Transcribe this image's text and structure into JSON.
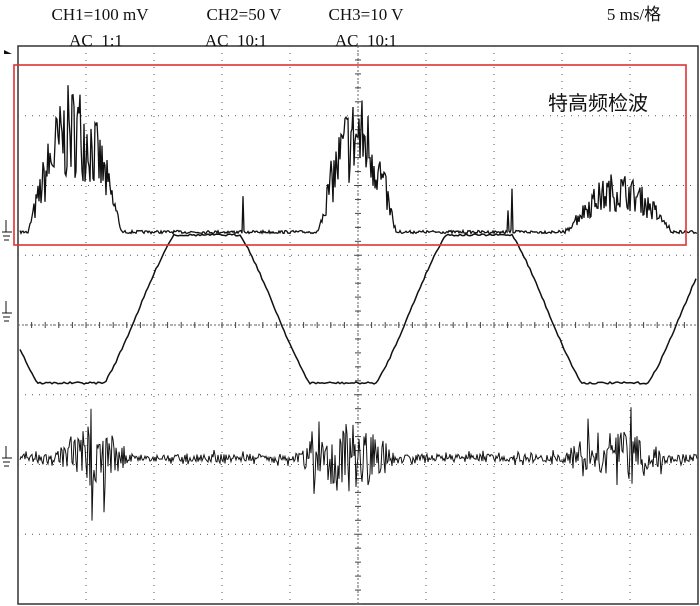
{
  "channels": [
    {
      "label": "CH1=100 mV",
      "coupling": "AC  1:1"
    },
    {
      "label": "CH2=50 V",
      "coupling": "AC  10:1"
    },
    {
      "label": "CH3=10 V",
      "coupling": "AC  10:1"
    }
  ],
  "timebase": "5 ms/格",
  "annotation": "特高频检波"
}
